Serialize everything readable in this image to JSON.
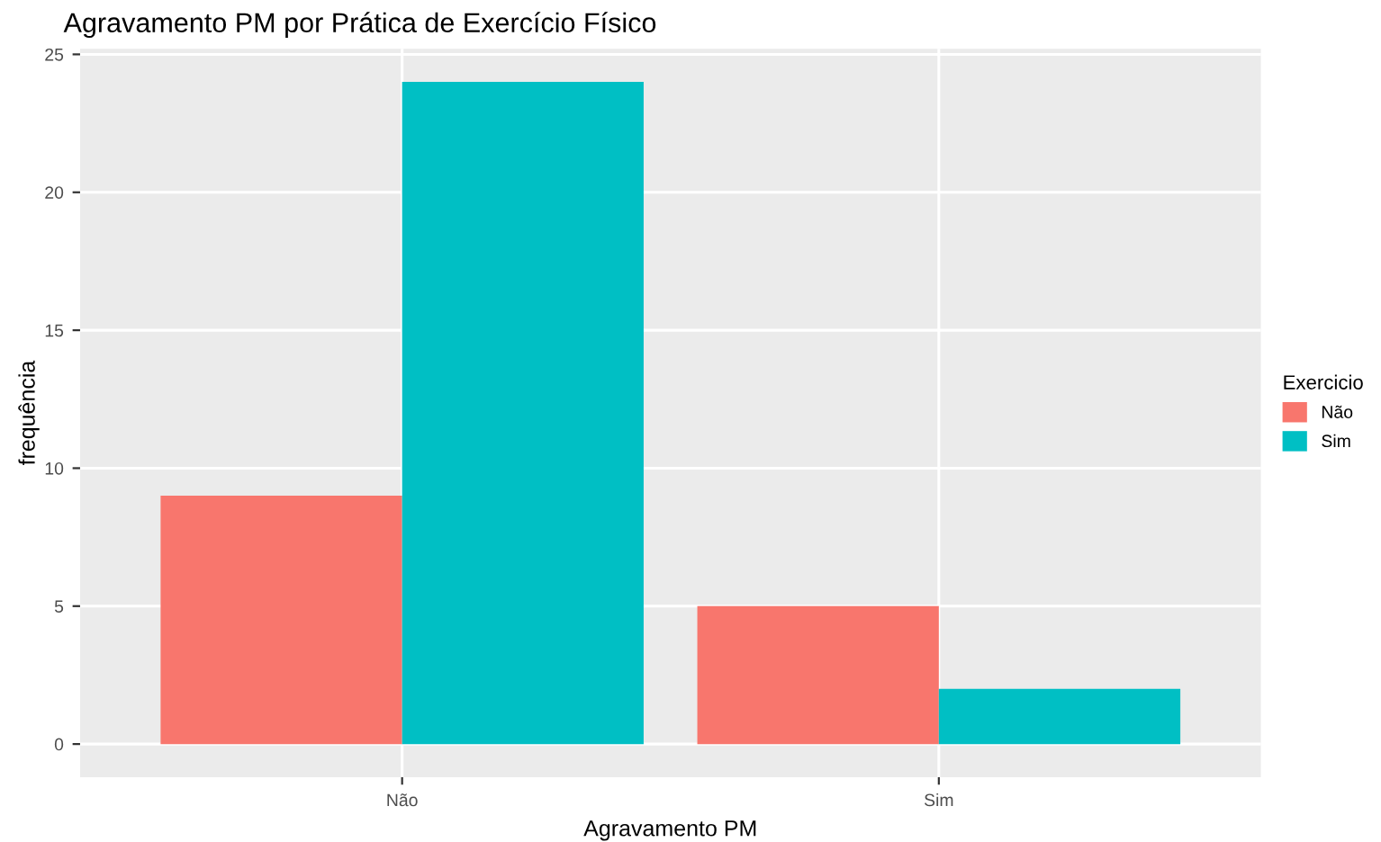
{
  "chart_data": {
    "type": "bar",
    "title": "Agravamento PM por Prática de Exercício Físico",
    "xlabel": "Agravamento PM",
    "ylabel": "frequência",
    "legend_title": "Exercicio",
    "categories": [
      "Não",
      "Sim"
    ],
    "series": [
      {
        "name": "Não",
        "color": "#f8766d",
        "values": [
          9,
          5
        ]
      },
      {
        "name": "Sim",
        "color": "#00bfc4",
        "values": [
          24,
          2
        ]
      }
    ],
    "ylim": [
      -1.2,
      25.2
    ],
    "yticks": [
      0,
      5,
      10,
      15,
      20,
      25
    ],
    "grid": true,
    "legend": "right"
  }
}
